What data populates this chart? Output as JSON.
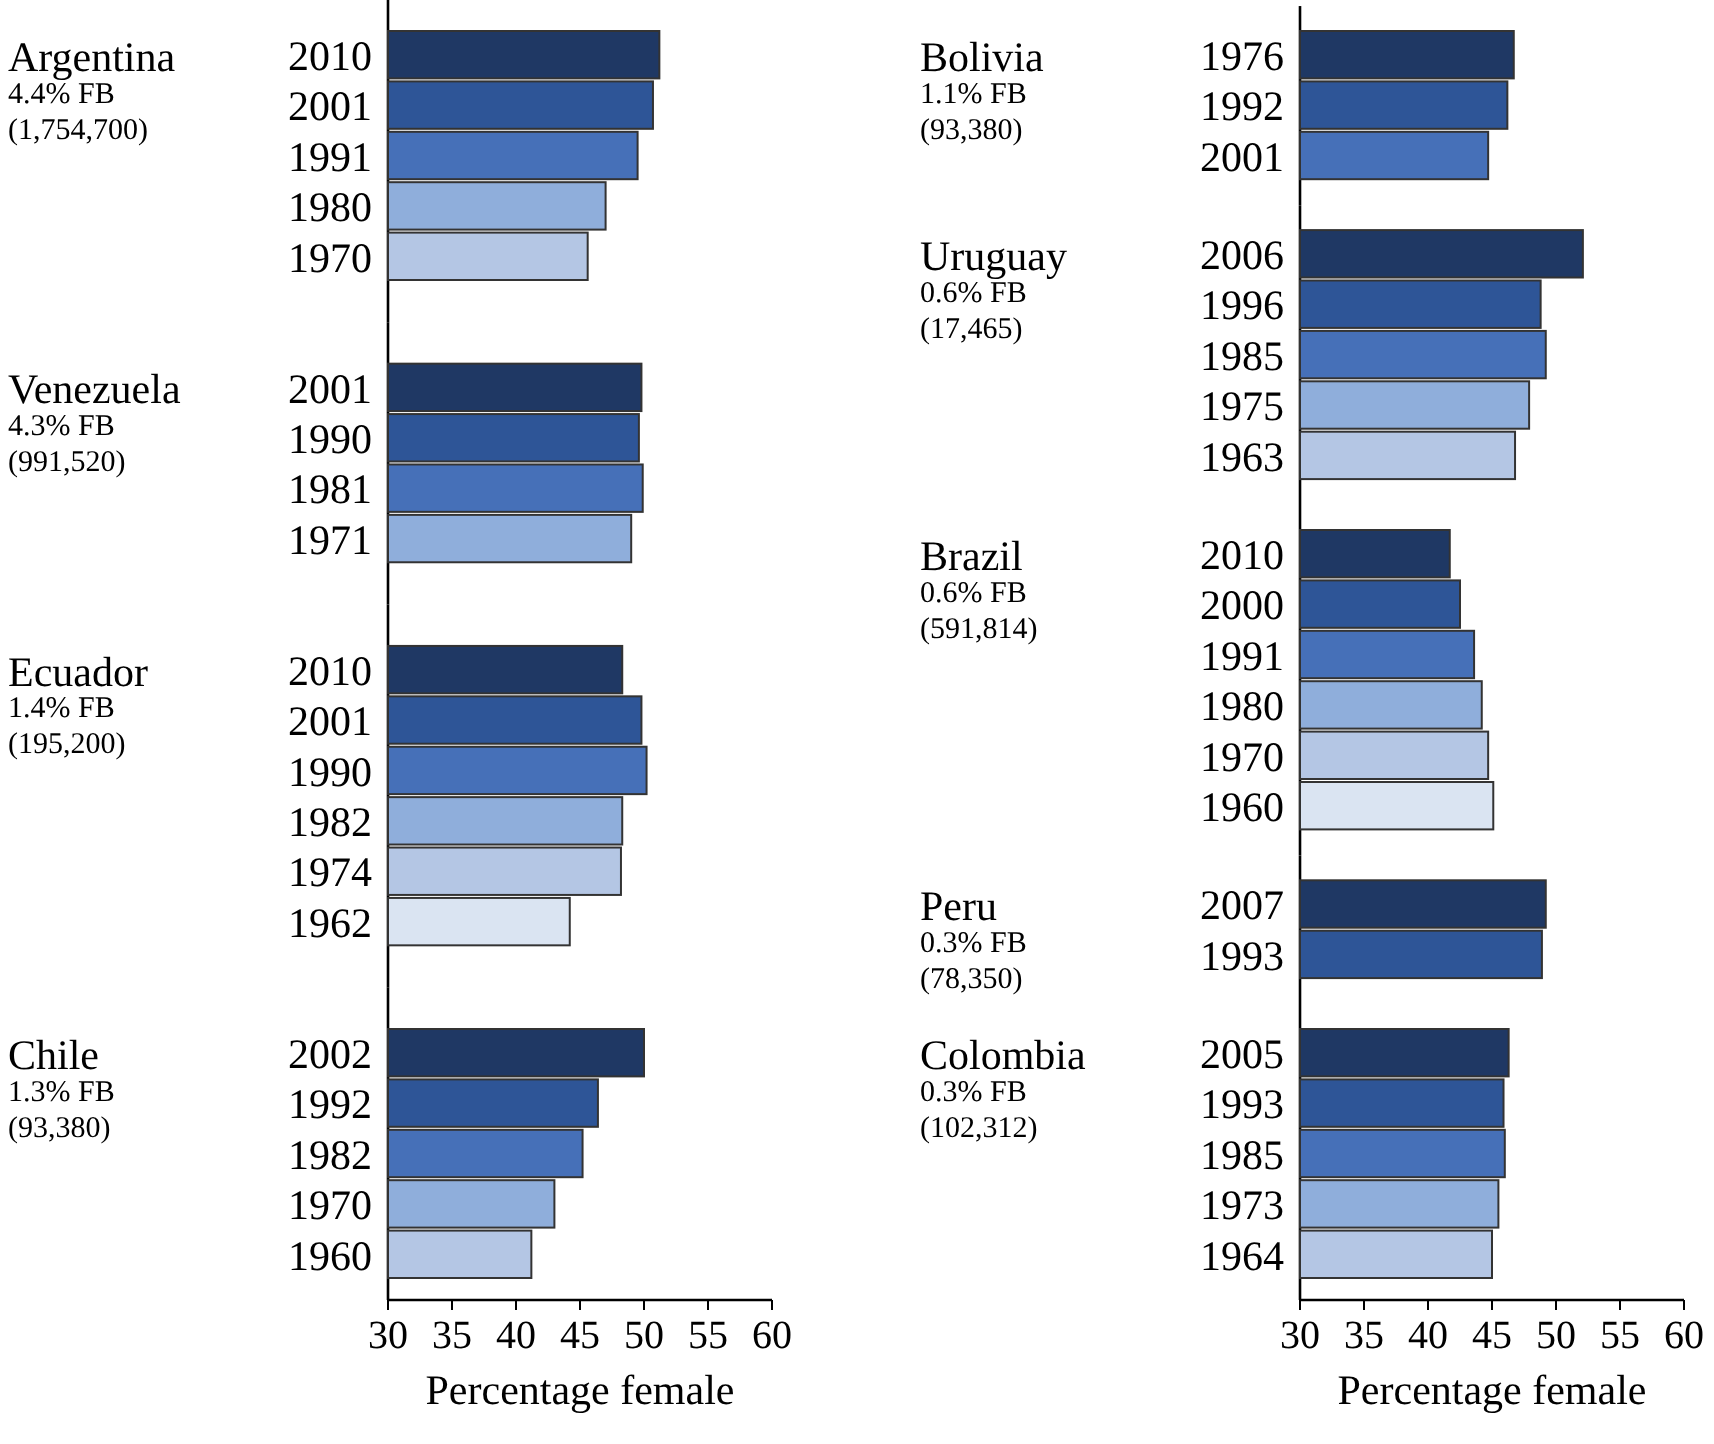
{
  "chart_data": [
    {
      "type": "bar",
      "orientation": "horizontal",
      "title": "Argentina",
      "subtitle": "4.4% FB",
      "annotations": [
        "(1,754,700)"
      ],
      "categories": [
        "2010",
        "2001",
        "1991",
        "1980",
        "1970"
      ],
      "values": [
        51.2,
        50.7,
        49.5,
        47.0,
        45.6
      ],
      "colors": [
        "#1f3864",
        "#2e5597",
        "#4670b8",
        "#8faedb",
        "#b4c6e4"
      ],
      "xlim": [
        30,
        60
      ],
      "tick_labels": "y"
    },
    {
      "type": "bar",
      "orientation": "horizontal",
      "title": "Venezuela",
      "subtitle": "4.3% FB",
      "annotations": [
        "(991,520)"
      ],
      "categories": [
        "2001",
        "1990",
        "1981",
        "1971"
      ],
      "values": [
        49.8,
        49.6,
        49.9,
        49.0
      ],
      "colors": [
        "#1f3864",
        "#2e5597",
        "#4670b8",
        "#8faedb"
      ],
      "xlim": [
        30,
        60
      ],
      "tick_labels": "y"
    },
    {
      "type": "bar",
      "orientation": "horizontal",
      "title": "Ecuador",
      "subtitle": "1.4% FB",
      "annotations": [
        "(195,200)"
      ],
      "categories": [
        "2010",
        "2001",
        "1990",
        "1982",
        "1974",
        "1962"
      ],
      "values": [
        48.3,
        49.8,
        50.2,
        48.3,
        48.2,
        44.2
      ],
      "colors": [
        "#1f3864",
        "#2e5597",
        "#4670b8",
        "#8faedb",
        "#b4c6e4",
        "#dae4f2"
      ],
      "xlim": [
        30,
        60
      ],
      "tick_labels": "y"
    },
    {
      "type": "bar",
      "orientation": "horizontal",
      "title": "Chile",
      "subtitle": "1.3% FB",
      "annotations": [
        "(93,380)"
      ],
      "categories": [
        "2002",
        "1992",
        "1982",
        "1970",
        "1960"
      ],
      "values": [
        50.0,
        46.4,
        45.2,
        43.0,
        41.2
      ],
      "colors": [
        "#1f3864",
        "#2e5597",
        "#4670b8",
        "#8faedb",
        "#b4c6e4"
      ],
      "xlim": [
        30,
        60
      ],
      "xticks": [
        30,
        35,
        40,
        45,
        50,
        55,
        60
      ],
      "xlabel": "Percentage female"
    },
    {
      "type": "bar",
      "orientation": "horizontal",
      "title": "Bolivia",
      "subtitle": "1.1% FB",
      "annotations": [
        "(93,380)"
      ],
      "categories": [
        "1976",
        "1992",
        "2001"
      ],
      "values": [
        46.7,
        46.2,
        44.7
      ],
      "colors": [
        "#1f3864",
        "#2e5597",
        "#4670b8"
      ],
      "xlim": [
        30,
        60
      ],
      "tick_labels": "y"
    },
    {
      "type": "bar",
      "orientation": "horizontal",
      "title": "Uruguay",
      "subtitle": "0.6% FB",
      "annotations": [
        "(17,465)"
      ],
      "categories": [
        "2006",
        "1996",
        "1985",
        "1975",
        "1963"
      ],
      "values": [
        52.1,
        48.8,
        49.2,
        47.9,
        46.8
      ],
      "colors": [
        "#1f3864",
        "#2e5597",
        "#4670b8",
        "#8faedb",
        "#b4c6e4"
      ],
      "xlim": [
        30,
        60
      ],
      "tick_labels": "y"
    },
    {
      "type": "bar",
      "orientation": "horizontal",
      "title": "Brazil",
      "subtitle": "0.6% FB",
      "annotations": [
        "(591,814)"
      ],
      "categories": [
        "2010",
        "2000",
        "1991",
        "1980",
        "1970",
        "1960"
      ],
      "values": [
        41.7,
        42.5,
        43.6,
        44.2,
        44.7,
        45.1
      ],
      "colors": [
        "#1f3864",
        "#2e5597",
        "#4670b8",
        "#8faedb",
        "#b4c6e4",
        "#dae4f2"
      ],
      "xlim": [
        30,
        60
      ],
      "tick_labels": "y"
    },
    {
      "type": "bar",
      "orientation": "horizontal",
      "title": "Peru",
      "subtitle": "0.3% FB",
      "annotations": [
        "(78,350)"
      ],
      "categories": [
        "2007",
        "1993"
      ],
      "values": [
        49.2,
        48.9
      ],
      "colors": [
        "#1f3864",
        "#2e5597"
      ],
      "xlim": [
        30,
        60
      ],
      "tick_labels": "y"
    },
    {
      "type": "bar",
      "orientation": "horizontal",
      "title": "Colombia",
      "subtitle": "0.3% FB",
      "annotations": [
        "(102,312)"
      ],
      "categories": [
        "2005",
        "1993",
        "1985",
        "1973",
        "1964"
      ],
      "values": [
        46.3,
        45.9,
        46.0,
        45.5,
        45.0
      ],
      "colors": [
        "#1f3864",
        "#2e5597",
        "#4670b8",
        "#8faedb",
        "#b4c6e4"
      ],
      "xlim": [
        30,
        60
      ],
      "xticks": [
        30,
        35,
        40,
        45,
        50,
        55,
        60
      ],
      "xlabel": "Percentage female"
    }
  ]
}
